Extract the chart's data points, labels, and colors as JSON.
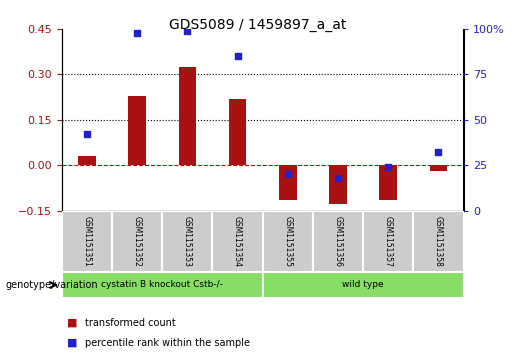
{
  "title": "GDS5089 / 1459897_a_at",
  "samples": [
    "GSM1151351",
    "GSM1151352",
    "GSM1151353",
    "GSM1151354",
    "GSM1151355",
    "GSM1151356",
    "GSM1151357",
    "GSM1151358"
  ],
  "transformed_count": [
    0.03,
    0.23,
    0.325,
    0.22,
    -0.115,
    -0.13,
    -0.115,
    -0.02
  ],
  "percentile_rank": [
    42,
    98,
    99,
    85,
    20,
    18,
    24,
    32
  ],
  "ylim_left": [
    -0.15,
    0.45
  ],
  "ylim_right": [
    0,
    100
  ],
  "yticks_left": [
    -0.15,
    0,
    0.15,
    0.3,
    0.45
  ],
  "yticks_right": [
    0,
    25,
    50,
    75,
    100
  ],
  "hlines": [
    0.15,
    0.3
  ],
  "group1_label": "cystatin B knockout Cstb-/-",
  "group2_label": "wild type",
  "group1_indices": [
    0,
    1,
    2,
    3
  ],
  "group2_indices": [
    4,
    5,
    6,
    7
  ],
  "bar_color": "#aa1111",
  "dot_color": "#2222cc",
  "group1_bg": "#88dd66",
  "group2_bg": "#88dd66",
  "genotype_label": "genotype/variation",
  "legend_bar": "transformed count",
  "legend_dot": "percentile rank within the sample",
  "bar_width": 0.35,
  "tick_bg": "#cccccc"
}
